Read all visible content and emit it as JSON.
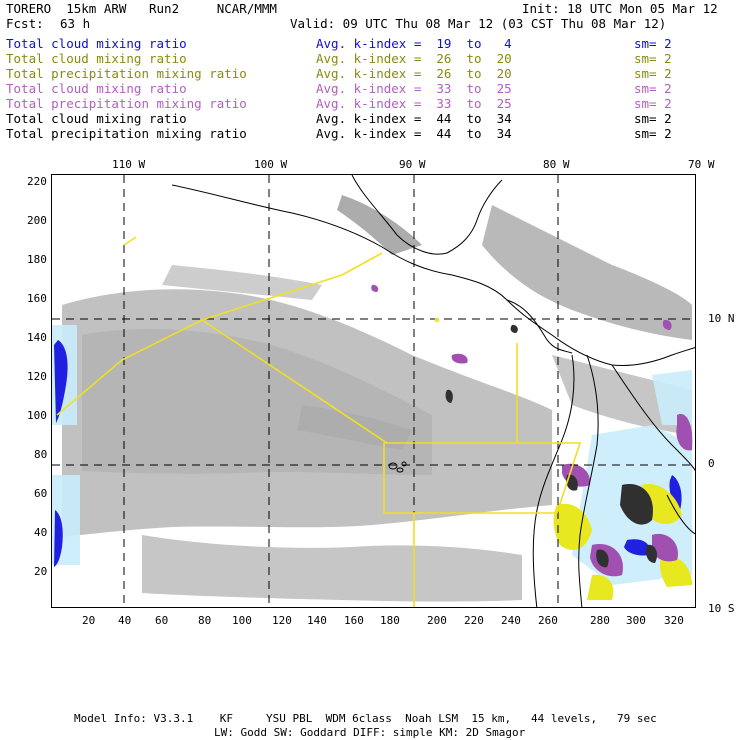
{
  "header": {
    "model_id": "TORERO  15km ARW   Run2     NCAR/MMM",
    "init": "Init: 18 UTC Mon 05 Mar 12",
    "fcst_label": "Fcst:",
    "fcst_value": "63 h",
    "valid": "Valid: 09 UTC Thu 08 Mar 12 (03 CST Thu 08 Mar 12)"
  },
  "legend_rows": [
    {
      "field": "Total cloud mixing ratio",
      "kindex": "Avg. k-index =  19  to   4",
      "sm": "sm= 2",
      "color": "#1010d0"
    },
    {
      "field": "Total cloud mixing ratio",
      "kindex": "Avg. k-index =  26  to  20",
      "sm": "sm= 2",
      "color": "#8a8a10"
    },
    {
      "field": "Total precipitation mixing ratio",
      "kindex": "Avg. k-index =  26  to  20",
      "sm": "sm= 2",
      "color": "#8a8a10"
    },
    {
      "field": "Total cloud mixing ratio",
      "kindex": "Avg. k-index =  33  to  25",
      "sm": "sm= 2",
      "color": "#b060c0"
    },
    {
      "field": "Total precipitation mixing ratio",
      "kindex": "Avg. k-index =  33  to  25",
      "sm": "sm= 2",
      "color": "#b060c0"
    },
    {
      "field": "Total cloud mixing ratio",
      "kindex": "Avg. k-index =  44  to  34",
      "sm": "sm= 2",
      "color": "#000000"
    },
    {
      "field": "Total precipitation mixing ratio",
      "kindex": "Avg. k-index =  44  to  34",
      "sm": "sm= 2",
      "color": "#000000"
    }
  ],
  "axes": {
    "top_lon": [
      "110 W",
      "100 W",
      "90 W",
      "80 W",
      "70 W"
    ],
    "right_lat": [
      "10 N",
      "0",
      "10 S"
    ],
    "left_y": [
      "220",
      "200",
      "180",
      "160",
      "140",
      "120",
      "100",
      "80",
      "60",
      "40",
      "20"
    ],
    "bottom_x": [
      "20",
      "40",
      "60",
      "80",
      "100",
      "120",
      "140",
      "160",
      "180",
      "200",
      "220",
      "240",
      "260",
      "280",
      "300",
      "320"
    ]
  },
  "footer": {
    "line1": "Model Info: V3.3.1    KF     YSU PBL  WDM 6class  Noah LSM  15 km,   44 levels,   79 sec",
    "line2": "LW: Godd SW: Goddard DIFF: simple KM: 2D Smagor"
  },
  "colors": {
    "cloud_gray": "#a8a8a8",
    "light_blue": "#c8ecfa",
    "blue": "#2020e0",
    "olive": "#e8e820",
    "violet": "#a050b0",
    "dark": "#303030",
    "domain_box": "#f0e020"
  }
}
